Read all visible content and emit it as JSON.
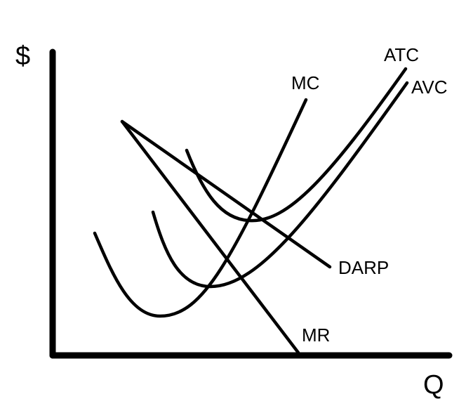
{
  "axes": {
    "y_label": "$",
    "x_label": "Q"
  },
  "curves": {
    "mc": "MC",
    "atc": "ATC",
    "avc": "AVC",
    "darp": "DARP",
    "mr": "MR"
  },
  "colors": {
    "ink": "#000000",
    "background": "#ffffff"
  }
}
